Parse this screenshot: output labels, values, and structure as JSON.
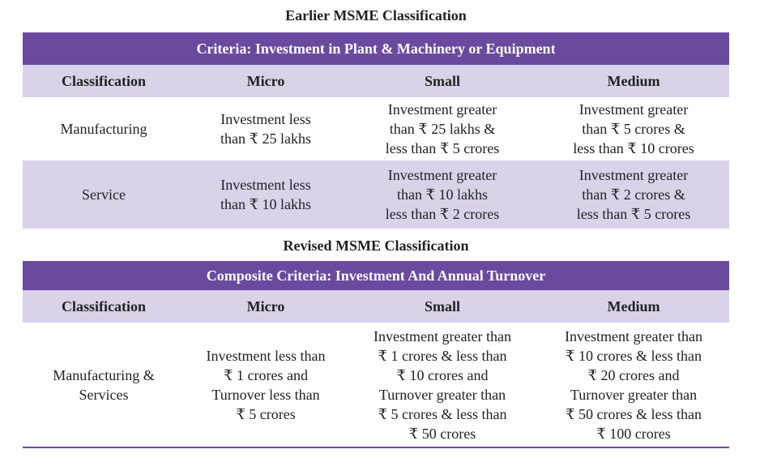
{
  "earlier": {
    "title": "Earlier MSME Classification",
    "criteria": "Criteria: Investment in Plant & Machinery or Equipment",
    "headers": [
      "Classification",
      "Micro",
      "Small",
      "Medium"
    ],
    "rows": [
      {
        "classification": "Manufacturing",
        "micro": [
          "Investment less",
          "than ₹ 25 lakhs"
        ],
        "small": [
          "Investment greater",
          "than ₹ 25 lakhs &",
          "less than ₹ 5 crores"
        ],
        "medium": [
          "Investment greater",
          "than ₹ 5 crores &",
          "less than ₹ 10 crores"
        ]
      },
      {
        "classification": "Service",
        "micro": [
          "Investment less",
          "than ₹ 10 lakhs"
        ],
        "small": [
          "Investment greater",
          "than ₹ 10 lakhs",
          "less than ₹ 2 crores"
        ],
        "medium": [
          "Investment greater",
          "than ₹ 2 crores &",
          "less than ₹ 5 crores"
        ]
      }
    ]
  },
  "revised": {
    "title": "Revised MSME Classification",
    "criteria": "Composite Criteria:  Investment And Annual Turnover",
    "headers": [
      "Classification",
      "Micro",
      "Small",
      "Medium"
    ],
    "rows": [
      {
        "classification": [
          "Manufacturing &",
          "Services"
        ],
        "micro": [
          "Investment less than",
          "₹ 1 crores and",
          "Turnover less than",
          "₹ 5 crores"
        ],
        "small": [
          "Investment greater than",
          "₹ 1 crores & less than",
          "₹ 10 crores and",
          "Turnover greater than",
          "₹ 5 crores & less than",
          "₹ 50 crores"
        ],
        "medium": [
          "Investment greater than",
          "₹ 10 crores & less than",
          "₹ 20 crores and",
          "Turnover greater than",
          "₹ 50 crores & less than",
          "₹ 100 crores"
        ]
      }
    ]
  },
  "colors": {
    "criteria_bg": "#6a4a9e",
    "header_bg": "#d9d2e9"
  }
}
